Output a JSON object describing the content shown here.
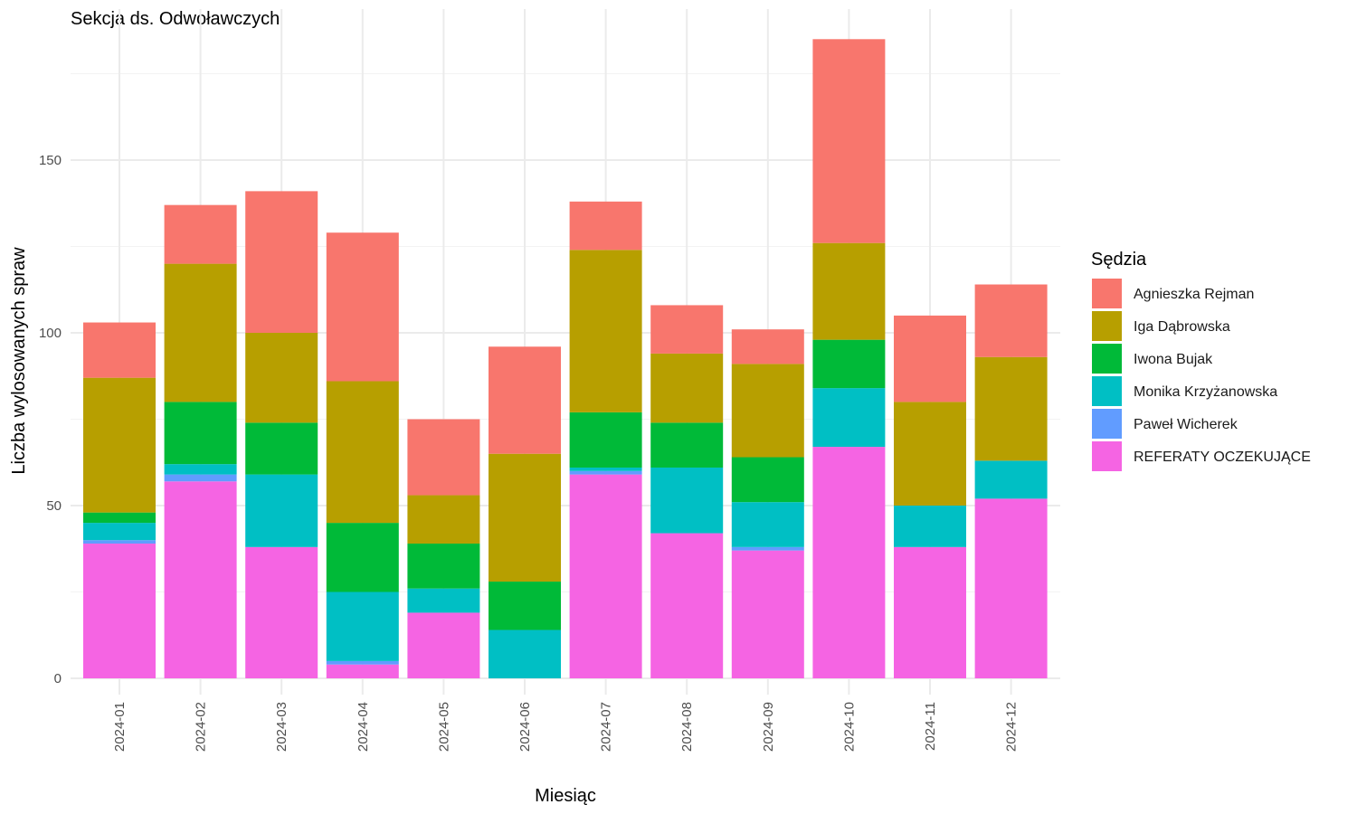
{
  "chart_data": {
    "type": "bar",
    "stacked": true,
    "title": "Sekcja ds. Odwoławczych",
    "xlabel": "Miesiąc",
    "ylabel": "Liczba wylosowanych spraw",
    "ylim": [
      0,
      190
    ],
    "yticks": [
      0,
      50,
      100,
      150
    ],
    "grid": true,
    "legend": {
      "title": "Sędzia",
      "position": "right"
    },
    "categories": [
      "2024-01",
      "2024-02",
      "2024-03",
      "2024-04",
      "2024-05",
      "2024-06",
      "2024-07",
      "2024-08",
      "2024-09",
      "2024-10",
      "2024-11",
      "2024-12"
    ],
    "series": [
      {
        "name": "REFERATY OCZEKUJĄCE",
        "color": "#F564E3",
        "values": [
          39,
          57,
          38,
          4,
          19,
          0,
          59,
          42,
          37,
          67,
          38,
          52
        ]
      },
      {
        "name": "Paweł Wicherek",
        "color": "#619CFF",
        "values": [
          1,
          2,
          0,
          1,
          0,
          0,
          1,
          0,
          1,
          0,
          0,
          0
        ]
      },
      {
        "name": "Monika Krzyżanowska",
        "color": "#00BFC4",
        "values": [
          5,
          3,
          21,
          20,
          7,
          14,
          1,
          19,
          13,
          17,
          12,
          11
        ]
      },
      {
        "name": "Iwona Bujak",
        "color": "#00BA38",
        "values": [
          3,
          18,
          15,
          20,
          13,
          14,
          16,
          13,
          13,
          14,
          0,
          0
        ]
      },
      {
        "name": "Iga Dąbrowska",
        "color": "#B79F00",
        "values": [
          39,
          40,
          26,
          41,
          14,
          37,
          47,
          20,
          27,
          28,
          30,
          30
        ]
      },
      {
        "name": "Agnieszka Rejman",
        "color": "#F8766D",
        "values": [
          16,
          17,
          41,
          43,
          22,
          31,
          14,
          14,
          10,
          59,
          25,
          21
        ]
      }
    ],
    "legend_order": [
      "Agnieszka Rejman",
      "Iga Dąbrowska",
      "Iwona Bujak",
      "Monika Krzyżanowska",
      "Paweł Wicherek",
      "REFERATY OCZEKUJĄCE"
    ]
  }
}
